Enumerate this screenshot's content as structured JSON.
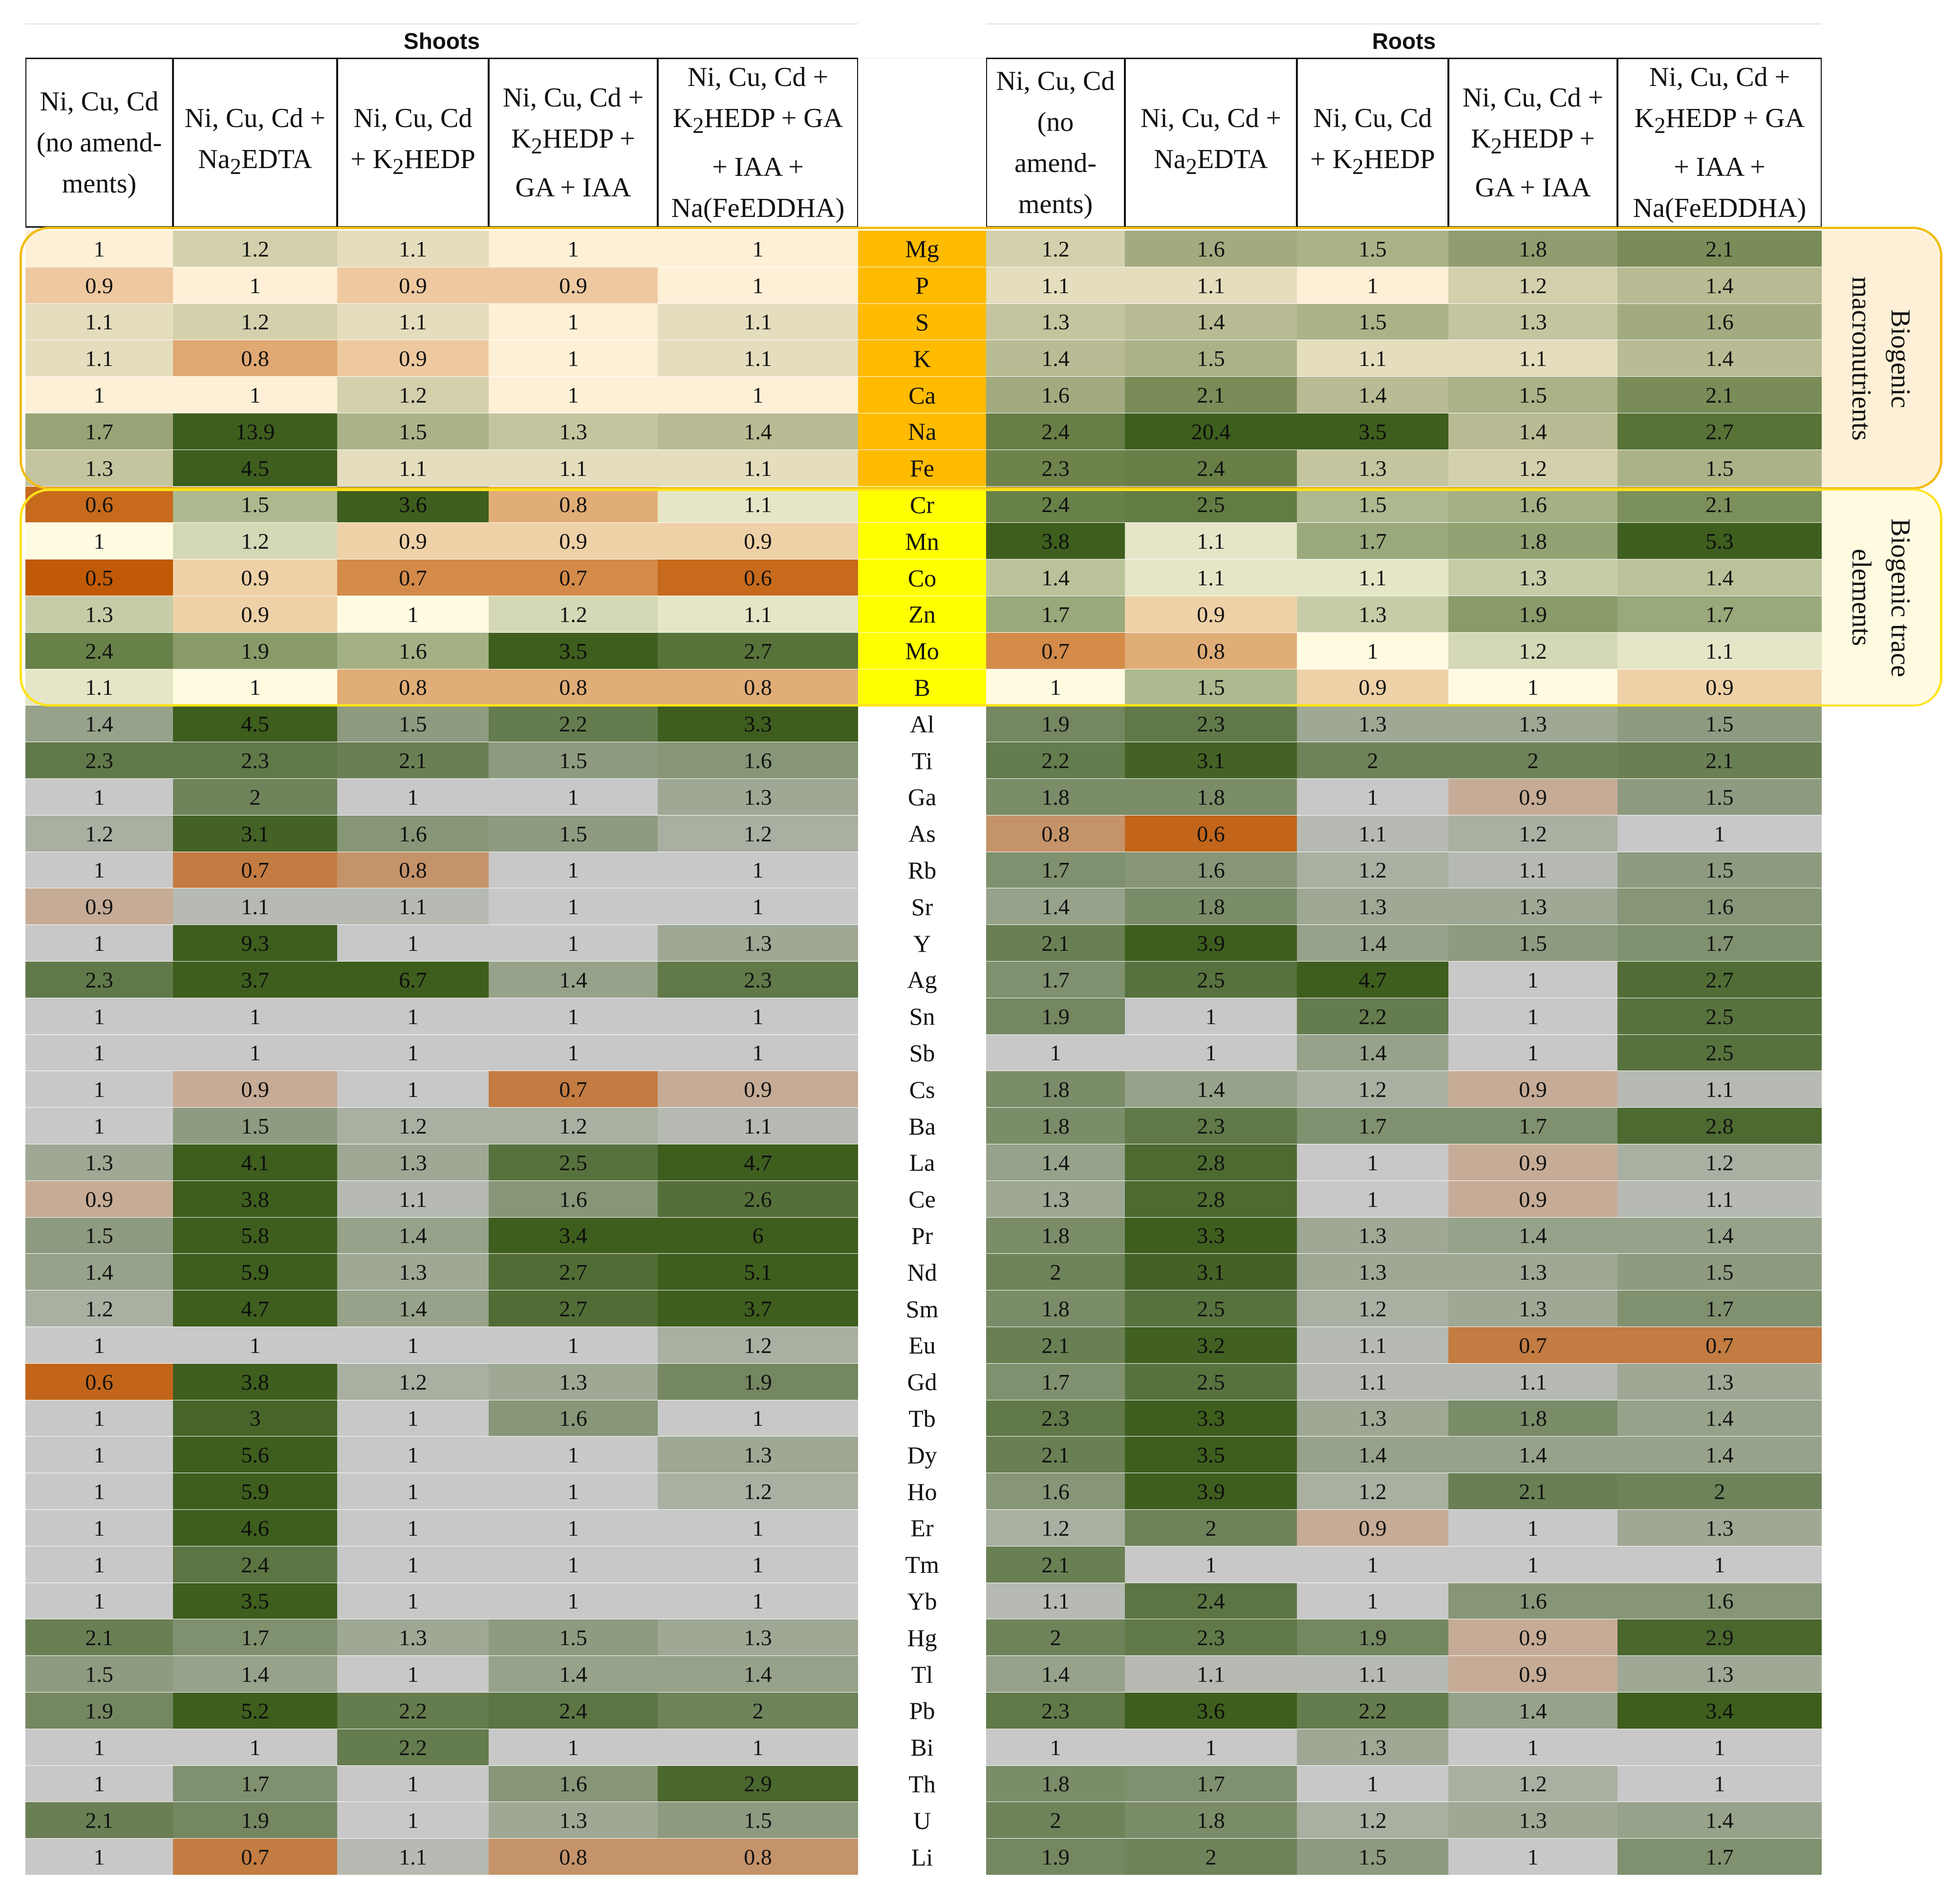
{
  "groups": {
    "shoots": "Shoots",
    "roots": "Roots"
  },
  "column_headers": {
    "shoots": [
      "Ni, Cu, Cd (no amend-ments)",
      "Ni, Cu, Cd + Na2EDTA",
      "Ni, Cu, Cd + K2HEDP",
      "Ni, Cu, Cd + K2HEDP + GA + IAA",
      "Ni, Cu, Cd + K2HEDP + GA + IAA + Na(FeEDDHA)"
    ],
    "roots": [
      "Ni, Cu, Cd (no amend-ments)",
      "Ni, Cu, Cd + Na2EDTA",
      "Ni, Cu, Cd + K2HEDP",
      "Ni, Cu, Cd + K2HEDP + GA + IAA",
      "Ni, Cu, Cd + K2HEDP + GA + IAA + Na(FeEDDHA)"
    ]
  },
  "side_labels": {
    "macro": "Biogenic macronutrients",
    "trace": "Biogenic trace elements"
  },
  "colors": {
    "macro_bg": "#fdf0d6",
    "trace_bg": "#fffbe1",
    "macro_element": "#ffbb00",
    "trace_element": "#ffff00",
    "macro_border": "#f2bd15",
    "trace_border": "#ffe21a",
    "neutral": "#c8c8c8",
    "green": "#3e5e1e",
    "orange": "#c15a06"
  },
  "chart_data": {
    "type": "table",
    "title": "",
    "groups": [
      "Shoots",
      "Roots"
    ],
    "columns": [
      "Ni, Cu, Cd (no amend-ments)",
      "Ni, Cu, Cd + Na2EDTA",
      "Ni, Cu, Cd + K2HEDP",
      "Ni, Cu, Cd + K2HEDP + GA + IAA",
      "Ni, Cu, Cd + K2HEDP + GA + IAA + Na(FeEDDHA)"
    ],
    "rows": [
      {
        "el": "Mg",
        "cat": "macro",
        "shoots": [
          1,
          1.2,
          1.1,
          1,
          1
        ],
        "roots": [
          1.2,
          1.6,
          1.5,
          1.8,
          2.1
        ]
      },
      {
        "el": "P",
        "cat": "macro",
        "shoots": [
          0.9,
          1,
          0.9,
          0.9,
          1
        ],
        "roots": [
          1.1,
          1.1,
          1,
          1.2,
          1.4
        ]
      },
      {
        "el": "S",
        "cat": "macro",
        "shoots": [
          1.1,
          1.2,
          1.1,
          1,
          1.1
        ],
        "roots": [
          1.3,
          1.4,
          1.5,
          1.3,
          1.6
        ]
      },
      {
        "el": "K",
        "cat": "macro",
        "shoots": [
          1.1,
          0.8,
          0.9,
          1,
          1.1
        ],
        "roots": [
          1.4,
          1.5,
          1.1,
          1.1,
          1.4
        ]
      },
      {
        "el": "Ca",
        "cat": "macro",
        "shoots": [
          1,
          1,
          1.2,
          1,
          1
        ],
        "roots": [
          1.6,
          2.1,
          1.4,
          1.5,
          2.1
        ]
      },
      {
        "el": "Na",
        "cat": "macro",
        "shoots": [
          1.7,
          13.9,
          1.5,
          1.3,
          1.4
        ],
        "roots": [
          2.4,
          20.4,
          3.5,
          1.4,
          2.7
        ]
      },
      {
        "el": "Fe",
        "cat": "macro",
        "shoots": [
          1.3,
          4.5,
          1.1,
          1.1,
          1.1
        ],
        "roots": [
          2.3,
          2.4,
          1.3,
          1.2,
          1.5
        ]
      },
      {
        "el": "Cr",
        "cat": "trace",
        "shoots": [
          0.6,
          1.5,
          3.6,
          0.8,
          1.1
        ],
        "roots": [
          2.4,
          2.5,
          1.5,
          1.6,
          2.1
        ]
      },
      {
        "el": "Mn",
        "cat": "trace",
        "shoots": [
          1,
          1.2,
          0.9,
          0.9,
          0.9
        ],
        "roots": [
          3.8,
          1.1,
          1.7,
          1.8,
          5.3
        ]
      },
      {
        "el": "Co",
        "cat": "trace",
        "shoots": [
          0.5,
          0.9,
          0.7,
          0.7,
          0.6
        ],
        "roots": [
          1.4,
          1.1,
          1.1,
          1.3,
          1.4
        ]
      },
      {
        "el": "Zn",
        "cat": "trace",
        "shoots": [
          1.3,
          0.9,
          1,
          1.2,
          1.1
        ],
        "roots": [
          1.7,
          0.9,
          1.3,
          1.9,
          1.7
        ]
      },
      {
        "el": "Mo",
        "cat": "trace",
        "shoots": [
          2.4,
          1.9,
          1.6,
          3.5,
          2.7
        ],
        "roots": [
          0.7,
          0.8,
          1,
          1.2,
          1.1
        ]
      },
      {
        "el": "B",
        "cat": "trace",
        "shoots": [
          1.1,
          1,
          0.8,
          0.8,
          0.8
        ],
        "roots": [
          1,
          1.5,
          0.9,
          1,
          0.9
        ]
      },
      {
        "el": "Al",
        "cat": "other",
        "shoots": [
          1.4,
          4.5,
          1.5,
          2.2,
          3.3
        ],
        "roots": [
          1.9,
          2.3,
          1.3,
          1.3,
          1.5
        ]
      },
      {
        "el": "Ti",
        "cat": "other",
        "shoots": [
          2.3,
          2.3,
          2.1,
          1.5,
          1.6
        ],
        "roots": [
          2.2,
          3.1,
          2,
          2,
          2.1
        ]
      },
      {
        "el": "Ga",
        "cat": "other",
        "shoots": [
          1,
          2,
          1,
          1,
          1.3
        ],
        "roots": [
          1.8,
          1.8,
          1,
          0.9,
          1.5
        ]
      },
      {
        "el": "As",
        "cat": "other",
        "shoots": [
          1.2,
          3.1,
          1.6,
          1.5,
          1.2
        ],
        "roots": [
          0.8,
          0.6,
          1.1,
          1.2,
          1
        ]
      },
      {
        "el": "Rb",
        "cat": "other",
        "shoots": [
          1,
          0.7,
          0.8,
          1,
          1
        ],
        "roots": [
          1.7,
          1.6,
          1.2,
          1.1,
          1.5
        ]
      },
      {
        "el": "Sr",
        "cat": "other",
        "shoots": [
          0.9,
          1.1,
          1.1,
          1,
          1
        ],
        "roots": [
          1.4,
          1.8,
          1.3,
          1.3,
          1.6
        ]
      },
      {
        "el": "Y",
        "cat": "other",
        "shoots": [
          1,
          9.3,
          1,
          1,
          1.3
        ],
        "roots": [
          2.1,
          3.9,
          1.4,
          1.5,
          1.7
        ]
      },
      {
        "el": "Ag",
        "cat": "other",
        "shoots": [
          2.3,
          3.7,
          6.7,
          1.4,
          2.3
        ],
        "roots": [
          1.7,
          2.5,
          4.7,
          1,
          2.7
        ]
      },
      {
        "el": "Sn",
        "cat": "other",
        "shoots": [
          1,
          1,
          1,
          1,
          1
        ],
        "roots": [
          1.9,
          1,
          2.2,
          1,
          2.5
        ]
      },
      {
        "el": "Sb",
        "cat": "other",
        "shoots": [
          1,
          1,
          1,
          1,
          1
        ],
        "roots": [
          1,
          1,
          1.4,
          1,
          2.5
        ]
      },
      {
        "el": "Cs",
        "cat": "other",
        "shoots": [
          1,
          0.9,
          1,
          0.7,
          0.9
        ],
        "roots": [
          1.8,
          1.4,
          1.2,
          0.9,
          1.1
        ]
      },
      {
        "el": "Ba",
        "cat": "other",
        "shoots": [
          1,
          1.5,
          1.2,
          1.2,
          1.1
        ],
        "roots": [
          1.8,
          2.3,
          1.7,
          1.7,
          2.8
        ]
      },
      {
        "el": "La",
        "cat": "other",
        "shoots": [
          1.3,
          4.1,
          1.3,
          2.5,
          4.7
        ],
        "roots": [
          1.4,
          2.8,
          1,
          0.9,
          1.2
        ]
      },
      {
        "el": "Ce",
        "cat": "other",
        "shoots": [
          0.9,
          3.8,
          1.1,
          1.6,
          2.6
        ],
        "roots": [
          1.3,
          2.8,
          1,
          0.9,
          1.1
        ]
      },
      {
        "el": "Pr",
        "cat": "other",
        "shoots": [
          1.5,
          5.8,
          1.4,
          3.4,
          6
        ],
        "roots": [
          1.8,
          3.3,
          1.3,
          1.4,
          1.4
        ]
      },
      {
        "el": "Nd",
        "cat": "other",
        "shoots": [
          1.4,
          5.9,
          1.3,
          2.7,
          5.1
        ],
        "roots": [
          2,
          3.1,
          1.3,
          1.3,
          1.5
        ]
      },
      {
        "el": "Sm",
        "cat": "other",
        "shoots": [
          1.2,
          4.7,
          1.4,
          2.7,
          3.7
        ],
        "roots": [
          1.8,
          2.5,
          1.2,
          1.3,
          1.7
        ]
      },
      {
        "el": "Eu",
        "cat": "other",
        "shoots": [
          1,
          1,
          1,
          1,
          1.2
        ],
        "roots": [
          2.1,
          3.2,
          1.1,
          0.7,
          0.7
        ]
      },
      {
        "el": "Gd",
        "cat": "other",
        "shoots": [
          0.6,
          3.8,
          1.2,
          1.3,
          1.9
        ],
        "roots": [
          1.7,
          2.5,
          1.1,
          1.1,
          1.3
        ]
      },
      {
        "el": "Tb",
        "cat": "other",
        "shoots": [
          1,
          3,
          1,
          1.6,
          1
        ],
        "roots": [
          2.3,
          3.3,
          1.3,
          1.8,
          1.4
        ]
      },
      {
        "el": "Dy",
        "cat": "other",
        "shoots": [
          1,
          5.6,
          1,
          1,
          1.3
        ],
        "roots": [
          2.1,
          3.5,
          1.4,
          1.4,
          1.4
        ]
      },
      {
        "el": "Ho",
        "cat": "other",
        "shoots": [
          1,
          5.9,
          1,
          1,
          1.2
        ],
        "roots": [
          1.6,
          3.9,
          1.2,
          2.1,
          2
        ]
      },
      {
        "el": "Er",
        "cat": "other",
        "shoots": [
          1,
          4.6,
          1,
          1,
          1
        ],
        "roots": [
          1.2,
          2,
          0.9,
          1,
          1.3
        ]
      },
      {
        "el": "Tm",
        "cat": "other",
        "shoots": [
          1,
          2.4,
          1,
          1,
          1
        ],
        "roots": [
          2.1,
          1,
          1,
          1,
          1
        ]
      },
      {
        "el": "Yb",
        "cat": "other",
        "shoots": [
          1,
          3.5,
          1,
          1,
          1
        ],
        "roots": [
          1.1,
          2.4,
          1,
          1.6,
          1.6
        ]
      },
      {
        "el": "Hg",
        "cat": "other",
        "shoots": [
          2.1,
          1.7,
          1.3,
          1.5,
          1.3
        ],
        "roots": [
          2,
          2.3,
          1.9,
          0.9,
          2.9
        ]
      },
      {
        "el": "Tl",
        "cat": "other",
        "shoots": [
          1.5,
          1.4,
          1,
          1.4,
          1.4
        ],
        "roots": [
          1.4,
          1.1,
          1.1,
          0.9,
          1.3
        ]
      },
      {
        "el": "Pb",
        "cat": "other",
        "shoots": [
          1.9,
          5.2,
          2.2,
          2.4,
          2
        ],
        "roots": [
          2.3,
          3.6,
          2.2,
          1.4,
          3.4
        ]
      },
      {
        "el": "Bi",
        "cat": "other",
        "shoots": [
          1,
          1,
          2.2,
          1,
          1
        ],
        "roots": [
          1,
          1,
          1.3,
          1,
          1
        ]
      },
      {
        "el": "Th",
        "cat": "other",
        "shoots": [
          1,
          1.7,
          1,
          1.6,
          2.9
        ],
        "roots": [
          1.8,
          1.7,
          1,
          1.2,
          1
        ]
      },
      {
        "el": "U",
        "cat": "other",
        "shoots": [
          2.1,
          1.9,
          1,
          1.3,
          1.5
        ],
        "roots": [
          2,
          1.8,
          1.2,
          1.3,
          1.4
        ]
      },
      {
        "el": "Li",
        "cat": "other",
        "shoots": [
          1,
          0.7,
          1.1,
          0.8,
          0.8
        ],
        "roots": [
          1.9,
          2,
          1.5,
          1,
          1.7
        ]
      }
    ]
  }
}
